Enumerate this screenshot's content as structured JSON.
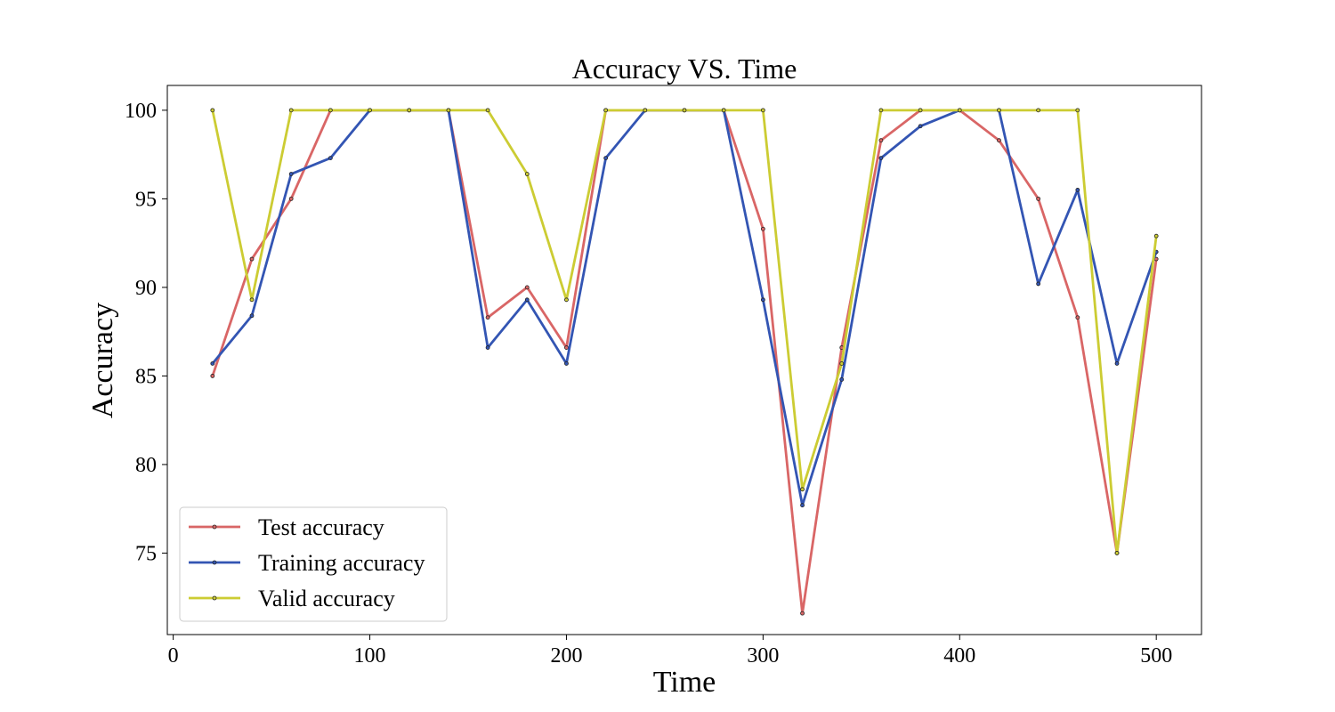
{
  "chart_data": {
    "type": "line",
    "title": "Accuracy VS. Time",
    "xlabel": "Time",
    "ylabel": "Accuracy",
    "xlim": [
      -3,
      523
    ],
    "ylim": [
      70.4,
      101.4
    ],
    "xticks": [
      0,
      100,
      200,
      300,
      400,
      500
    ],
    "yticks": [
      75,
      80,
      85,
      90,
      95,
      100
    ],
    "grid": false,
    "legend_position": "lower-left",
    "x": [
      20,
      40,
      60,
      80,
      100,
      120,
      140,
      160,
      180,
      200,
      220,
      240,
      260,
      280,
      300,
      320,
      340,
      360,
      380,
      400,
      420,
      440,
      460,
      480,
      500
    ],
    "series": [
      {
        "name": "Test accuracy",
        "color": "#d96666",
        "values": [
          85.0,
          91.6,
          95.0,
          100,
          100,
          100,
          100,
          88.3,
          90.0,
          86.6,
          100,
          100,
          100,
          100,
          93.3,
          71.6,
          86.6,
          98.3,
          100,
          100,
          98.3,
          95.0,
          88.3,
          75.0,
          91.6
        ]
      },
      {
        "name": "Training accuracy",
        "color": "#3355b3",
        "values": [
          85.7,
          88.4,
          96.4,
          97.3,
          100,
          100,
          100,
          86.6,
          89.3,
          85.7,
          97.3,
          100,
          100,
          100,
          89.3,
          77.7,
          84.8,
          97.3,
          99.1,
          100,
          100,
          90.2,
          95.5,
          85.7,
          92.0
        ]
      },
      {
        "name": "Valid accuracy",
        "color": "#cccc33",
        "values": [
          100,
          89.3,
          100,
          100,
          100,
          100,
          100,
          100,
          96.4,
          89.3,
          100,
          100,
          100,
          100,
          100,
          78.6,
          85.7,
          100,
          100,
          100,
          100,
          100,
          100,
          75.0,
          92.9
        ]
      }
    ]
  }
}
